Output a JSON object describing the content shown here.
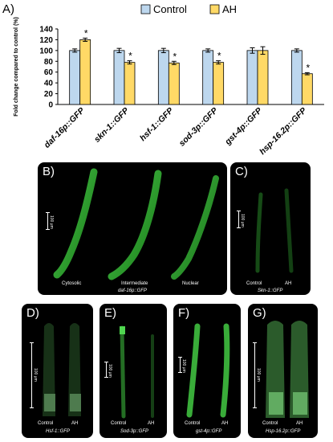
{
  "figure": {
    "panel_a_letter": "A)",
    "panels": {
      "B": {
        "letter": "B)",
        "labels": [
          "Cytosolic",
          "Intermediate",
          "Nuclear"
        ],
        "title": "daf-16p::GFP",
        "scale": "100 μm"
      },
      "C": {
        "letter": "C)",
        "labels": [
          "Control",
          "AH"
        ],
        "title": "Skn-1::GFP",
        "scale": "100 μm"
      },
      "D": {
        "letter": "D)",
        "labels": [
          "Control",
          "AH"
        ],
        "title": "Hsf-1::GFP",
        "scale": "100 μm"
      },
      "E": {
        "letter": "E)",
        "labels": [
          "Control",
          "AH"
        ],
        "title": "Sod-3p::GFP",
        "scale": "100 μm"
      },
      "F": {
        "letter": "F)",
        "labels": [
          "Control",
          "AH"
        ],
        "title": "gst-4p::GFP",
        "scale": "100 μm"
      },
      "G": {
        "letter": "G)",
        "labels": [
          "Control",
          "AH"
        ],
        "title": "Hsp-16.2p::GFP",
        "scale": "100 μm"
      }
    }
  },
  "chart_data": {
    "type": "bar",
    "categories": [
      "daf-16p::GFP",
      "skn-1::GFP",
      "hsf-1::GFP",
      "sod-3p::GFP",
      "gst-4p::GFP",
      "hsp-16.2p::GFP"
    ],
    "series": [
      {
        "name": "Control",
        "values": [
          100,
          100,
          100,
          100,
          100,
          100
        ],
        "errors": [
          3,
          4,
          4,
          3,
          5,
          3
        ],
        "color": "#bdd7ee"
      },
      {
        "name": "AH",
        "values": [
          120,
          78,
          77,
          78,
          100,
          57
        ],
        "errors": [
          3,
          3,
          3,
          3,
          7,
          2
        ],
        "color": "#ffd966"
      }
    ],
    "significant_ah": [
      true,
      true,
      true,
      true,
      false,
      true
    ],
    "significance_marker": "*",
    "ylabel": "Fold change compared to control (%)",
    "yticks": [
      0,
      20,
      40,
      60,
      80,
      100,
      120,
      140
    ],
    "ylim": [
      0,
      140
    ],
    "legend_position": "top-right",
    "grid": false
  }
}
